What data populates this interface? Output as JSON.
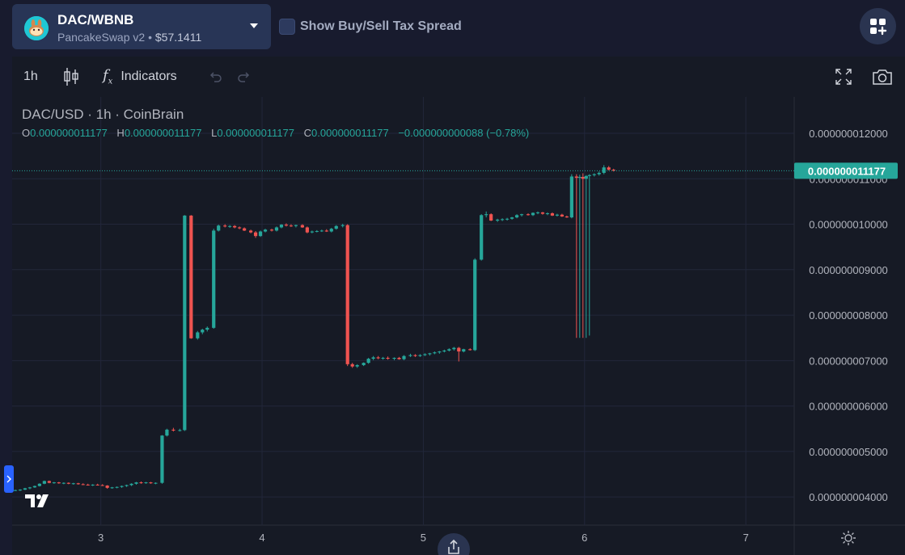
{
  "header": {
    "pair": "DAC/WBNB",
    "exchange": "PancakeSwap v2",
    "separator": "•",
    "liquidity": "$57.1411",
    "tax_toggle_label": "Show Buy/Sell Tax Spread"
  },
  "toolbar": {
    "interval": "1h",
    "indicators_label": "Indicators",
    "icons": [
      "candlestick-icon",
      "fx-icon",
      "undo-icon",
      "redo-icon",
      "fullscreen-icon",
      "camera-icon"
    ]
  },
  "legend": {
    "title": "DAC/USD · 1h · CoinBrain",
    "o_label": "O",
    "o_value": "0.000000011177",
    "h_label": "H",
    "h_value": "0.000000011177",
    "l_label": "L",
    "l_value": "0.000000011177",
    "c_label": "C",
    "c_value": "0.000000011177",
    "change": "−0.000000000088 (−0.78%)"
  },
  "colors": {
    "up": "#26a69a",
    "down": "#ef5350",
    "background": "#161a25",
    "grid": "#22273a",
    "accent": "#2962ff"
  },
  "chart_data": {
    "type": "candlestick",
    "title": "DAC/USD · 1h · CoinBrain",
    "y_axis_labels": [
      "0.000000012000",
      "0.000000011000",
      "0.000000010000",
      "0.000000009000",
      "0.000000008000",
      "0.000000007000",
      "0.000000006000",
      "0.000000005000",
      "0.000000004000"
    ],
    "x_axis_labels": [
      "3",
      "4",
      "5",
      "6",
      "7"
    ],
    "x_range": [
      2.45,
      7.3
    ],
    "y_range": [
      3.38,
      12.8
    ],
    "y_unit_scale": "1e-9",
    "last_price_label": "0.000000011177",
    "last_price": 11.177,
    "candles": [
      [
        2.47,
        4.14,
        4.16,
        4.13,
        4.15
      ],
      [
        2.5,
        4.15,
        4.17,
        4.13,
        4.16
      ],
      [
        2.53,
        4.16,
        4.2,
        4.15,
        4.19
      ],
      [
        2.56,
        4.19,
        4.22,
        4.17,
        4.21
      ],
      [
        2.59,
        4.21,
        4.25,
        4.2,
        4.24
      ],
      [
        2.62,
        4.24,
        4.3,
        4.23,
        4.29
      ],
      [
        2.65,
        4.29,
        4.36,
        4.28,
        4.35
      ],
      [
        2.68,
        4.35,
        4.36,
        4.3,
        4.31
      ],
      [
        2.71,
        4.31,
        4.33,
        4.29,
        4.32
      ],
      [
        2.74,
        4.32,
        4.33,
        4.29,
        4.3
      ],
      [
        2.77,
        4.3,
        4.32,
        4.28,
        4.31
      ],
      [
        2.8,
        4.31,
        4.32,
        4.28,
        4.29
      ],
      [
        2.83,
        4.29,
        4.31,
        4.27,
        4.3
      ],
      [
        2.86,
        4.3,
        4.31,
        4.27,
        4.28
      ],
      [
        2.89,
        4.28,
        4.3,
        4.26,
        4.27
      ],
      [
        2.92,
        4.27,
        4.29,
        4.25,
        4.26
      ],
      [
        2.95,
        4.26,
        4.28,
        4.24,
        4.27
      ],
      [
        2.98,
        4.27,
        4.29,
        4.25,
        4.26
      ],
      [
        3.01,
        4.26,
        4.28,
        4.24,
        4.25
      ],
      [
        3.04,
        4.25,
        4.26,
        4.18,
        4.2
      ],
      [
        3.07,
        4.2,
        4.22,
        4.18,
        4.21
      ],
      [
        3.1,
        4.21,
        4.23,
        4.19,
        4.22
      ],
      [
        3.13,
        4.22,
        4.25,
        4.2,
        4.24
      ],
      [
        3.16,
        4.24,
        4.27,
        4.22,
        4.26
      ],
      [
        3.19,
        4.26,
        4.3,
        4.24,
        4.29
      ],
      [
        3.22,
        4.29,
        4.33,
        4.27,
        4.32
      ],
      [
        3.25,
        4.32,
        4.34,
        4.29,
        4.31
      ],
      [
        3.28,
        4.31,
        4.33,
        4.29,
        4.32
      ],
      [
        3.31,
        4.32,
        4.33,
        4.29,
        4.3
      ],
      [
        3.34,
        4.3,
        4.32,
        4.28,
        4.31
      ],
      [
        3.38,
        4.31,
        5.36,
        4.29,
        5.35
      ],
      [
        3.41,
        5.35,
        5.5,
        5.33,
        5.48
      ],
      [
        3.45,
        5.48,
        5.52,
        5.44,
        5.46
      ],
      [
        3.49,
        5.46,
        5.5,
        5.44,
        5.47
      ],
      [
        3.52,
        5.47,
        10.2,
        5.45,
        10.19
      ],
      [
        3.56,
        10.19,
        10.2,
        7.48,
        7.49
      ],
      [
        3.6,
        7.49,
        7.65,
        7.46,
        7.62
      ],
      [
        3.63,
        7.62,
        7.7,
        7.58,
        7.68
      ],
      [
        3.66,
        7.68,
        7.75,
        7.64,
        7.72
      ],
      [
        3.7,
        7.72,
        9.9,
        7.7,
        9.86
      ],
      [
        3.73,
        9.86,
        9.99,
        9.84,
        9.97
      ],
      [
        3.77,
        9.97,
        10.0,
        9.93,
        9.95
      ],
      [
        3.8,
        9.95,
        9.98,
        9.92,
        9.96
      ],
      [
        3.83,
        9.96,
        9.98,
        9.91,
        9.93
      ],
      [
        3.86,
        9.93,
        9.95,
        9.89,
        9.91
      ],
      [
        3.89,
        9.91,
        9.93,
        9.85,
        9.86
      ],
      [
        3.93,
        9.86,
        9.88,
        9.8,
        9.82
      ],
      [
        3.96,
        9.82,
        9.85,
        9.7,
        9.74
      ],
      [
        3.99,
        9.74,
        9.86,
        9.72,
        9.84
      ],
      [
        4.02,
        9.84,
        9.9,
        9.82,
        9.88
      ],
      [
        4.06,
        9.88,
        9.9,
        9.84,
        9.86
      ],
      [
        4.09,
        9.86,
        9.95,
        9.84,
        9.93
      ],
      [
        4.12,
        9.93,
        10.0,
        9.91,
        9.99
      ],
      [
        4.15,
        9.99,
        10.02,
        9.95,
        9.97
      ],
      [
        4.18,
        9.97,
        10.0,
        9.94,
        9.96
      ],
      [
        4.21,
        9.96,
        9.99,
        9.93,
        9.98
      ],
      [
        4.25,
        9.98,
        10.0,
        9.92,
        9.93
      ],
      [
        4.28,
        9.93,
        9.95,
        9.8,
        9.82
      ],
      [
        4.31,
        9.82,
        9.86,
        9.8,
        9.84
      ],
      [
        4.34,
        9.84,
        9.87,
        9.82,
        9.85
      ],
      [
        4.37,
        9.85,
        9.88,
        9.83,
        9.86
      ],
      [
        4.4,
        9.86,
        9.89,
        9.83,
        9.84
      ],
      [
        4.43,
        9.84,
        9.92,
        9.82,
        9.9
      ],
      [
        4.46,
        9.9,
        9.98,
        9.88,
        9.96
      ],
      [
        4.5,
        9.96,
        10.01,
        9.93,
        9.98
      ],
      [
        4.53,
        9.98,
        10.0,
        6.88,
        6.92
      ],
      [
        4.56,
        6.92,
        6.95,
        6.84,
        6.87
      ],
      [
        4.59,
        6.87,
        6.92,
        6.84,
        6.9
      ],
      [
        4.63,
        6.9,
        6.96,
        6.88,
        6.95
      ],
      [
        4.66,
        6.95,
        7.06,
        6.93,
        7.04
      ],
      [
        4.69,
        7.04,
        7.1,
        7.01,
        7.07
      ],
      [
        4.72,
        7.07,
        7.1,
        7.03,
        7.05
      ],
      [
        4.75,
        7.05,
        7.08,
        7.02,
        7.06
      ],
      [
        4.78,
        7.06,
        7.09,
        7.02,
        7.04
      ],
      [
        4.82,
        7.04,
        7.07,
        7.01,
        7.06
      ],
      [
        4.85,
        7.06,
        7.08,
        7.02,
        7.03
      ],
      [
        4.88,
        7.03,
        7.12,
        7.01,
        7.1
      ],
      [
        4.92,
        7.1,
        7.15,
        7.08,
        7.12
      ],
      [
        4.95,
        7.12,
        7.14,
        7.08,
        7.1
      ],
      [
        4.98,
        7.1,
        7.14,
        7.08,
        7.12
      ],
      [
        5.01,
        7.12,
        7.16,
        7.1,
        7.14
      ],
      [
        5.04,
        7.14,
        7.17,
        7.11,
        7.16
      ],
      [
        5.07,
        7.16,
        7.2,
        7.14,
        7.18
      ],
      [
        5.1,
        7.18,
        7.21,
        7.15,
        7.2
      ],
      [
        5.13,
        7.2,
        7.24,
        7.18,
        7.22
      ],
      [
        5.16,
        7.22,
        7.27,
        7.2,
        7.25
      ],
      [
        5.19,
        7.25,
        7.3,
        7.22,
        7.28
      ],
      [
        5.22,
        7.28,
        7.3,
        6.98,
        7.2
      ],
      [
        5.25,
        7.2,
        7.26,
        7.18,
        7.25
      ],
      [
        5.29,
        7.25,
        7.27,
        7.22,
        7.23
      ],
      [
        5.32,
        7.23,
        9.25,
        7.21,
        9.22
      ],
      [
        5.36,
        9.22,
        10.22,
        9.2,
        10.2
      ],
      [
        5.39,
        10.2,
        10.28,
        10.15,
        10.22
      ],
      [
        5.42,
        10.22,
        10.24,
        10.07,
        10.08
      ],
      [
        5.46,
        10.08,
        10.12,
        10.05,
        10.1
      ],
      [
        5.49,
        10.1,
        10.13,
        10.07,
        10.11
      ],
      [
        5.52,
        10.11,
        10.14,
        10.08,
        10.12
      ],
      [
        5.55,
        10.12,
        10.16,
        10.1,
        10.15
      ],
      [
        5.58,
        10.15,
        10.22,
        10.13,
        10.2
      ],
      [
        5.61,
        10.2,
        10.23,
        10.17,
        10.22
      ],
      [
        5.65,
        10.22,
        10.24,
        10.19,
        10.2
      ],
      [
        5.68,
        10.2,
        10.26,
        10.18,
        10.25
      ],
      [
        5.71,
        10.25,
        10.28,
        10.22,
        10.26
      ],
      [
        5.74,
        10.26,
        10.27,
        10.21,
        10.23
      ],
      [
        5.77,
        10.23,
        10.26,
        10.2,
        10.24
      ],
      [
        5.8,
        10.24,
        10.26,
        10.18,
        10.19
      ],
      [
        5.83,
        10.19,
        10.23,
        10.17,
        10.21
      ],
      [
        5.86,
        10.21,
        10.23,
        10.16,
        10.17
      ],
      [
        5.89,
        10.17,
        10.19,
        10.14,
        10.15
      ],
      [
        5.92,
        10.15,
        11.1,
        10.13,
        11.05
      ],
      [
        5.95,
        11.05,
        11.1,
        7.5,
        11.02
      ],
      [
        5.97,
        11.02,
        11.09,
        7.5,
        11.04
      ],
      [
        5.99,
        11.04,
        11.12,
        7.5,
        11.0
      ],
      [
        6.01,
        11.0,
        11.08,
        7.5,
        11.06
      ],
      [
        6.03,
        11.06,
        11.1,
        7.55,
        11.08
      ],
      [
        6.06,
        11.08,
        11.12,
        11.05,
        11.1
      ],
      [
        6.09,
        11.1,
        11.16,
        11.07,
        11.13
      ],
      [
        6.12,
        11.13,
        11.3,
        11.1,
        11.25
      ],
      [
        6.15,
        11.25,
        11.28,
        11.18,
        11.2
      ],
      [
        6.18,
        11.2,
        11.22,
        11.16,
        11.18
      ]
    ]
  }
}
